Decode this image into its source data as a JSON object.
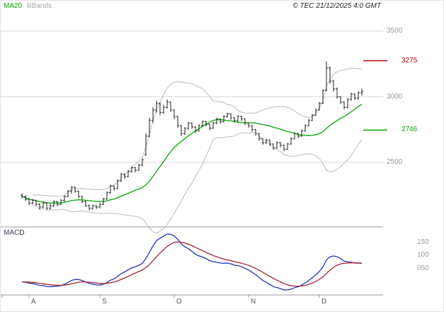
{
  "header": {
    "ma20_label": "MA20",
    "bbands_label": "BBands",
    "copyright": "© TEC 21/12/2025 4:0 GMT"
  },
  "macd_panel": {
    "label": "MACD"
  },
  "chart_data": {
    "type": "candlestick",
    "title": "Daily OHLC price chart with MA20, Bollinger Bands and MACD",
    "price_axis": {
      "ticks": [
        {
          "label": "3500",
          "value": 3500
        },
        {
          "label": "3000",
          "value": 3000
        },
        {
          "label": "2500",
          "value": 2500
        }
      ],
      "range_hint": [
        2050,
        3550
      ]
    },
    "levels": [
      {
        "label": "3275",
        "value": 3275,
        "color": "#bb0000",
        "role": "resistance"
      },
      {
        "label": "2746",
        "value": 2746,
        "color": "#00a800",
        "role": "support"
      }
    ],
    "macd_axis": {
      "ticks": [
        {
          "label": "150",
          "value": 150
        },
        {
          "label": "100",
          "value": 100
        },
        {
          "label": "050",
          "value": 50
        }
      ]
    },
    "x_axis": {
      "months": [
        {
          "label": "A",
          "index": 2
        },
        {
          "label": "S",
          "index": 22
        },
        {
          "label": "O",
          "index": 43
        },
        {
          "label": "N",
          "index": 64
        },
        {
          "label": "D",
          "index": 84
        }
      ]
    },
    "indicators": {
      "ma_period": 20,
      "bollinger": {
        "period": 20,
        "stddev": 2
      },
      "macd": {
        "fast": 12,
        "slow": 26,
        "signal": 9
      }
    },
    "colors": {
      "grid": "#d9d9d9",
      "frame": "#999999",
      "bbands": "#bbbbbb",
      "ma20": "#00a800",
      "candles": "#222222",
      "macd": "#2233bb",
      "macd_signal": "#aa2233",
      "axis_text": "#999999",
      "month_text": "#555555"
    },
    "candles": [
      [
        2250,
        2265,
        2225,
        2240
      ],
      [
        2240,
        2250,
        2205,
        2220
      ],
      [
        2220,
        2230,
        2175,
        2190
      ],
      [
        2190,
        2220,
        2180,
        2210
      ],
      [
        2210,
        2215,
        2170,
        2180
      ],
      [
        2180,
        2190,
        2140,
        2160
      ],
      [
        2160,
        2200,
        2150,
        2190
      ],
      [
        2190,
        2195,
        2140,
        2150
      ],
      [
        2150,
        2185,
        2140,
        2170
      ],
      [
        2170,
        2210,
        2160,
        2200
      ],
      [
        2200,
        2205,
        2165,
        2180
      ],
      [
        2180,
        2220,
        2175,
        2210
      ],
      [
        2210,
        2250,
        2200,
        2240
      ],
      [
        2240,
        2290,
        2235,
        2280
      ],
      [
        2280,
        2320,
        2260,
        2310
      ],
      [
        2310,
        2315,
        2270,
        2280
      ],
      [
        2280,
        2285,
        2230,
        2240
      ],
      [
        2240,
        2245,
        2190,
        2200
      ],
      [
        2200,
        2210,
        2160,
        2170
      ],
      [
        2170,
        2180,
        2135,
        2150
      ],
      [
        2150,
        2180,
        2140,
        2170
      ],
      [
        2170,
        2175,
        2145,
        2160
      ],
      [
        2160,
        2190,
        2150,
        2180
      ],
      [
        2180,
        2230,
        2175,
        2220
      ],
      [
        2220,
        2280,
        2215,
        2270
      ],
      [
        2270,
        2330,
        2260,
        2320
      ],
      [
        2320,
        2325,
        2285,
        2300
      ],
      [
        2300,
        2370,
        2295,
        2360
      ],
      [
        2360,
        2420,
        2350,
        2410
      ],
      [
        2410,
        2415,
        2375,
        2390
      ],
      [
        2390,
        2440,
        2385,
        2430
      ],
      [
        2430,
        2470,
        2420,
        2460
      ],
      [
        2460,
        2465,
        2425,
        2440
      ],
      [
        2440,
        2490,
        2435,
        2480
      ],
      [
        2480,
        2530,
        2470,
        2520
      ],
      [
        2560,
        2720,
        2550,
        2700
      ],
      [
        2700,
        2840,
        2690,
        2820
      ],
      [
        2820,
        2920,
        2800,
        2900
      ],
      [
        2900,
        2970,
        2880,
        2950
      ],
      [
        2950,
        2955,
        2860,
        2880
      ],
      [
        2880,
        2940,
        2870,
        2920
      ],
      [
        2920,
        2980,
        2910,
        2960
      ],
      [
        2960,
        2965,
        2885,
        2900
      ],
      [
        2900,
        2905,
        2830,
        2850
      ],
      [
        2850,
        2855,
        2765,
        2780
      ],
      [
        2780,
        2785,
        2700,
        2720
      ],
      [
        2720,
        2770,
        2710,
        2760
      ],
      [
        2760,
        2810,
        2750,
        2800
      ],
      [
        2800,
        2805,
        2755,
        2770
      ],
      [
        2770,
        2775,
        2725,
        2740
      ],
      [
        2740,
        2790,
        2735,
        2780
      ],
      [
        2780,
        2820,
        2770,
        2810
      ],
      [
        2810,
        2815,
        2775,
        2790
      ],
      [
        2790,
        2795,
        2745,
        2760
      ],
      [
        2760,
        2810,
        2755,
        2800
      ],
      [
        2800,
        2840,
        2790,
        2830
      ],
      [
        2830,
        2835,
        2795,
        2810
      ],
      [
        2810,
        2860,
        2805,
        2850
      ],
      [
        2850,
        2880,
        2840,
        2870
      ],
      [
        2870,
        2875,
        2825,
        2840
      ],
      [
        2840,
        2845,
        2805,
        2820
      ],
      [
        2820,
        2860,
        2810,
        2850
      ],
      [
        2850,
        2855,
        2815,
        2830
      ],
      [
        2830,
        2835,
        2785,
        2800
      ],
      [
        2800,
        2805,
        2765,
        2780
      ],
      [
        2780,
        2785,
        2735,
        2750
      ],
      [
        2750,
        2755,
        2705,
        2720
      ],
      [
        2720,
        2725,
        2665,
        2680
      ],
      [
        2680,
        2685,
        2635,
        2650
      ],
      [
        2650,
        2680,
        2640,
        2670
      ],
      [
        2670,
        2675,
        2625,
        2640
      ],
      [
        2640,
        2645,
        2595,
        2610
      ],
      [
        2610,
        2660,
        2605,
        2650
      ],
      [
        2650,
        2655,
        2615,
        2630
      ],
      [
        2630,
        2635,
        2585,
        2600
      ],
      [
        2600,
        2650,
        2595,
        2640
      ],
      [
        2640,
        2690,
        2635,
        2680
      ],
      [
        2680,
        2730,
        2675,
        2720
      ],
      [
        2720,
        2725,
        2685,
        2700
      ],
      [
        2700,
        2750,
        2695,
        2740
      ],
      [
        2740,
        2790,
        2735,
        2780
      ],
      [
        2780,
        2830,
        2775,
        2820
      ],
      [
        2820,
        2870,
        2815,
        2860
      ],
      [
        2860,
        2910,
        2855,
        2900
      ],
      [
        2900,
        2960,
        2895,
        2950
      ],
      [
        2950,
        3060,
        2945,
        3050
      ],
      [
        3050,
        3270,
        3040,
        3220
      ],
      [
        3220,
        3230,
        3100,
        3120
      ],
      [
        3120,
        3130,
        3040,
        3060
      ],
      [
        3060,
        3070,
        2985,
        3000
      ],
      [
        3000,
        3005,
        2945,
        2960
      ],
      [
        2960,
        2965,
        2905,
        2920
      ],
      [
        2920,
        2990,
        2910,
        2980
      ],
      [
        2980,
        3030,
        2970,
        3020
      ],
      [
        3020,
        3025,
        2975,
        2990
      ],
      [
        2990,
        3040,
        2980,
        3030
      ],
      [
        3030,
        3060,
        3010,
        3040
      ]
    ]
  }
}
